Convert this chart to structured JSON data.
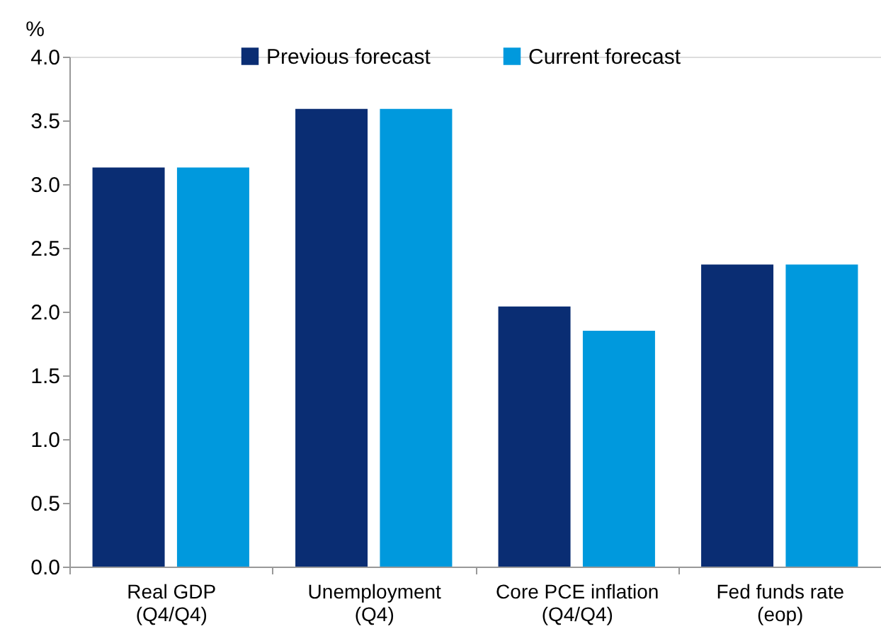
{
  "chart_data": {
    "type": "bar",
    "ylabel": "%",
    "categories": [
      "Real GDP\n(Q4/Q4)",
      "Unemployment\n(Q4)",
      "Core PCE inflation\n(Q4/Q4)",
      "Fed funds rate\n(eop)"
    ],
    "series": [
      {
        "name": "Previous forecast",
        "color": "#0a2d73",
        "values": [
          3.13,
          3.59,
          2.04,
          2.37
        ]
      },
      {
        "name": "Current forecast",
        "color": "#0099dd",
        "values": [
          3.13,
          3.59,
          1.85,
          2.37
        ]
      }
    ],
    "ylim": [
      0,
      4
    ],
    "yticks": [
      {
        "value": 0,
        "label": "0.0"
      },
      0.5,
      {
        "value": 1,
        "label": "1.0"
      },
      1.5,
      {
        "value": 2,
        "label": "2.0"
      },
      2.5,
      {
        "value": 3,
        "label": "3.0"
      },
      3.5,
      {
        "value": 4,
        "label": "4.0"
      }
    ],
    "grid": false,
    "legend": "top"
  }
}
